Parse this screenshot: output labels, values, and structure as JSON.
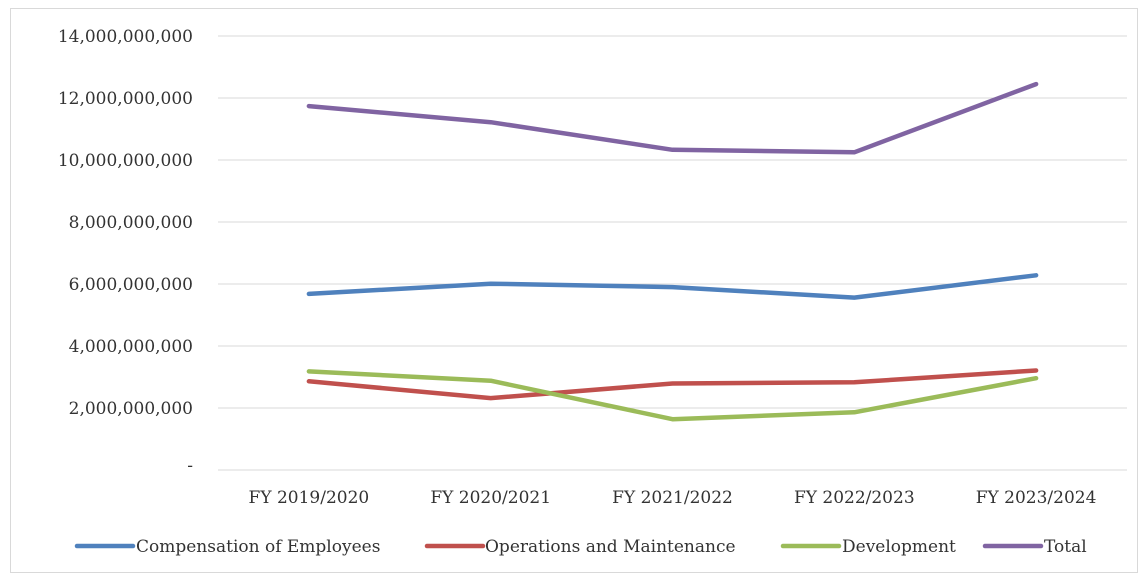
{
  "chart_data": {
    "type": "line",
    "categories": [
      "FY 2019/2020",
      "FY 2020/2021",
      "FY 2021/2022",
      "FY 2022/2023",
      "FY 2023/2024"
    ],
    "ylim": [
      0,
      14000000000
    ],
    "yticks": [
      0,
      2000000000,
      4000000000,
      6000000000,
      8000000000,
      10000000000,
      12000000000,
      14000000000
    ],
    "ytick_labels": [
      "-",
      "2,000,000,000",
      "4,000,000,000",
      "6,000,000,000",
      "8,000,000,000",
      "10,000,000,000",
      "12,000,000,000",
      "14,000,000,000"
    ],
    "grid": "horizontal",
    "legend_position": "bottom",
    "series": [
      {
        "name": "Compensation of Employees",
        "color": "#4f81bd",
        "values": [
          5680000000,
          6010000000,
          5900000000,
          5560000000,
          6280000000
        ]
      },
      {
        "name": "Operations and Maintenance",
        "color": "#c0504d",
        "values": [
          2860000000,
          2320000000,
          2790000000,
          2830000000,
          3210000000
        ]
      },
      {
        "name": "Development",
        "color": "#9bbb59",
        "values": [
          3180000000,
          2880000000,
          1640000000,
          1860000000,
          2960000000
        ]
      },
      {
        "name": "Total",
        "color": "#8064a2",
        "values": [
          11740000000,
          11220000000,
          10330000000,
          10250000000,
          12450000000
        ]
      }
    ]
  }
}
